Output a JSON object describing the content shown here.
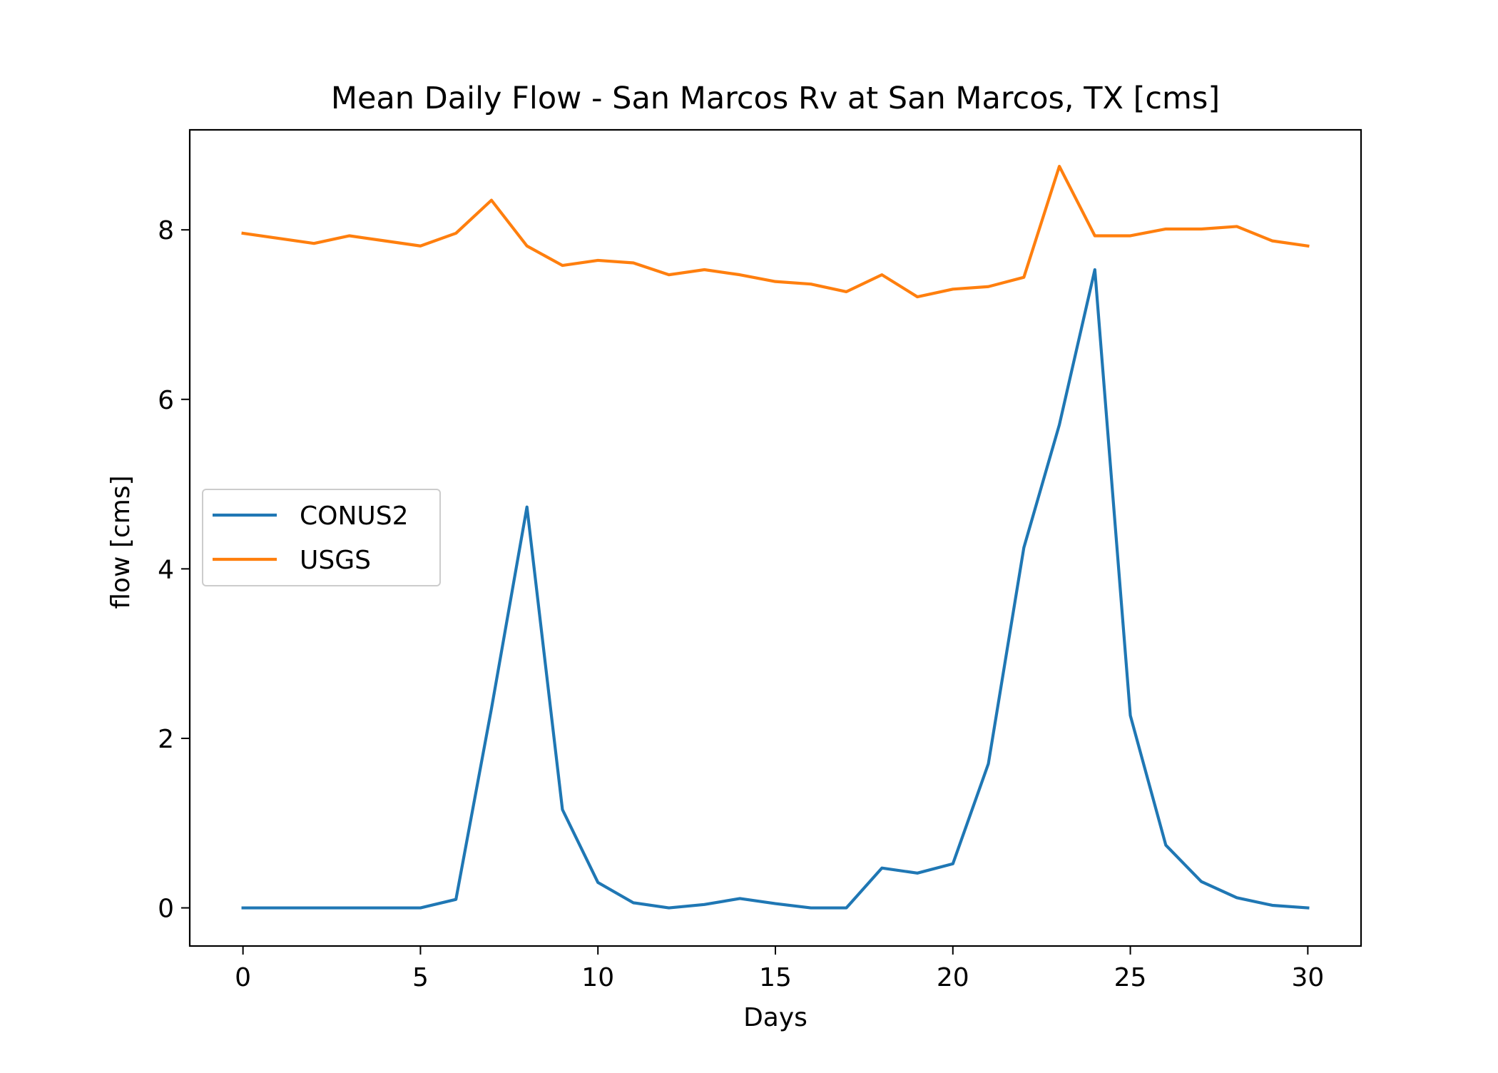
{
  "chart_data": {
    "type": "line",
    "title": "Mean Daily Flow - San Marcos Rv at San Marcos, TX [cms]",
    "xlabel": "Days",
    "ylabel": "flow [cms]",
    "xlim": [
      -1.5,
      31.5
    ],
    "ylim": [
      -0.45,
      9.18
    ],
    "xticks": [
      0,
      5,
      10,
      15,
      20,
      25,
      30
    ],
    "yticks": [
      0,
      2,
      4,
      6,
      8
    ],
    "grid": false,
    "legend_position": "center-left",
    "x": [
      0,
      1,
      2,
      3,
      4,
      5,
      6,
      7,
      8,
      9,
      10,
      11,
      12,
      13,
      14,
      15,
      16,
      17,
      18,
      19,
      20,
      21,
      22,
      23,
      24,
      25,
      26,
      27,
      28,
      29,
      30
    ],
    "series": [
      {
        "name": "CONUS2",
        "color": "#1f77b4",
        "values": [
          0,
          0,
          0,
          0,
          0,
          0,
          0.1,
          2.35,
          4.73,
          1.16,
          0.3,
          0.06,
          0,
          0.04,
          0.11,
          0.05,
          0,
          0,
          0.47,
          0.41,
          0.52,
          1.7,
          4.25,
          5.7,
          7.53,
          2.27,
          0.74,
          0.31,
          0.12,
          0.03,
          0
        ]
      },
      {
        "name": "USGS",
        "color": "#ff7f0e",
        "values": [
          7.96,
          7.9,
          7.84,
          7.93,
          7.87,
          7.81,
          7.96,
          8.35,
          7.81,
          7.58,
          7.64,
          7.61,
          7.47,
          7.53,
          7.47,
          7.39,
          7.36,
          7.27,
          7.47,
          7.21,
          7.3,
          7.33,
          7.44,
          8.75,
          7.93,
          7.93,
          8.01,
          8.01,
          8.04,
          7.87,
          7.81
        ]
      }
    ]
  }
}
